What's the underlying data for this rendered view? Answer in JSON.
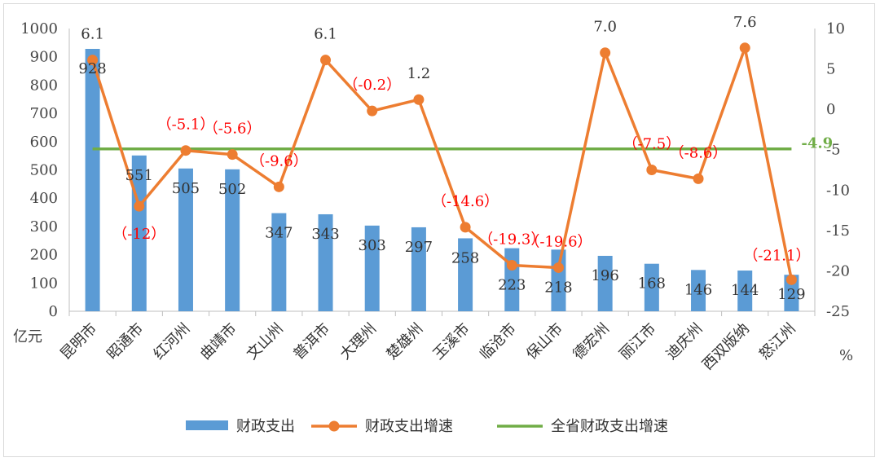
{
  "chart_data": {
    "type": "bar",
    "categories": [
      "昆明市",
      "昭通市",
      "红河州",
      "曲靖市",
      "文山州",
      "普洱市",
      "大理州",
      "楚雄州",
      "玉溪市",
      "临沧市",
      "保山市",
      "德宏州",
      "丽江市",
      "迪庆州",
      "西双版纳",
      "怒江州"
    ],
    "series": [
      {
        "name": "财政支出",
        "type": "bar",
        "axis": "left",
        "color": "#5b9bd5",
        "values": [
          928,
          551,
          505,
          502,
          347,
          343,
          303,
          297,
          258,
          223,
          218,
          196,
          168,
          146,
          144,
          129
        ],
        "labels": [
          "928",
          "551",
          "505",
          "502",
          "347",
          "343",
          "303",
          "297",
          "258",
          "223",
          "218",
          "196",
          "168",
          "146",
          "144",
          "129"
        ]
      },
      {
        "name": "财政支出增速",
        "type": "line",
        "axis": "right",
        "color": "#ed7d31",
        "values": [
          6.1,
          -12,
          -5.1,
          -5.6,
          -9.6,
          6.1,
          -0.2,
          1.2,
          -14.6,
          -19.3,
          -19.6,
          7.0,
          -7.5,
          -8.6,
          7.6,
          -21.1
        ],
        "labels": [
          "6.1",
          "（-12）",
          "（-5.1）",
          "（-5.6）",
          "（-9.6）",
          "6.1",
          "（-0.2）",
          "1.2",
          "（-14.6）",
          "（-19.3）",
          "（-19.6）",
          "7.0",
          "（-7.5）",
          "（-8.6）",
          "7.6",
          "（-21.1）"
        ]
      },
      {
        "name": "全省财政支出增速",
        "type": "line",
        "axis": "right",
        "color": "#70ad47",
        "value": -4.9,
        "label": "-4.9"
      }
    ],
    "y_left": {
      "unit": "亿元",
      "ylim": [
        0,
        1000
      ],
      "ticks": [
        "0",
        "100",
        "200",
        "300",
        "400",
        "500",
        "600",
        "700",
        "800",
        "900",
        "1000"
      ]
    },
    "y_right": {
      "unit": "%",
      "ylim": [
        -25,
        10
      ],
      "ticks": [
        "-25",
        "-20",
        "-15",
        "-10",
        "-5",
        "0",
        "5",
        "10"
      ]
    },
    "negative_label_color": "#ff0000",
    "grid": false,
    "legend_position": "bottom"
  }
}
